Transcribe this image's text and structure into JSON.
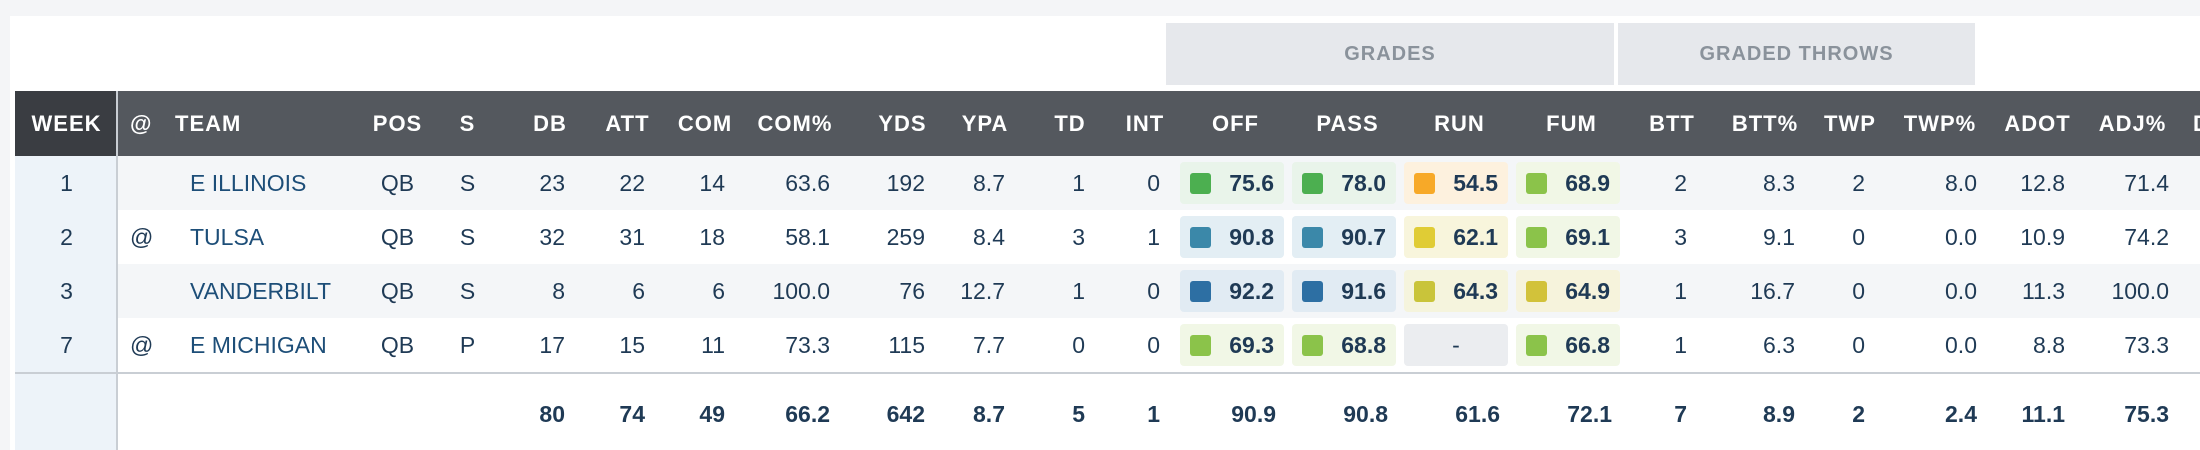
{
  "group_headers": {
    "grades": "GRADES",
    "graded_throws": "GRADED THROWS"
  },
  "columns": {
    "week": "WEEK",
    "at": "@",
    "team": "TEAM",
    "pos": "POS",
    "s": "S",
    "db": "DB",
    "att": "ATT",
    "com": "COM",
    "com_pct": "COM%",
    "yds": "YDS",
    "ypa": "YPA",
    "td": "TD",
    "int": "INT",
    "off": "OFF",
    "pass": "PASS",
    "run": "RUN",
    "fum": "FUM",
    "btt": "BTT",
    "btt_pct": "BTT%",
    "twp": "TWP",
    "twp_pct": "TWP%",
    "adot": "ADOT",
    "adj_pct": "ADJ%",
    "next": "D"
  },
  "rows": [
    {
      "week": "1",
      "at": "",
      "team": "E ILLINOIS",
      "pos": "QB",
      "s": "S",
      "db": "23",
      "att": "22",
      "com": "14",
      "com_pct": "63.6",
      "yds": "192",
      "ypa": "8.7",
      "td": "1",
      "int": "0",
      "off": "75.6",
      "pass": "78.0",
      "run": "54.5",
      "fum": "68.9",
      "off_color": "#4caf50",
      "pass_color": "#4caf50",
      "run_color": "#f7a928",
      "fum_color": "#8bc34a",
      "off_bg": "#e9f4ea",
      "pass_bg": "#e9f4ea",
      "run_bg": "#fdf1de",
      "fum_bg": "#f1f7e6",
      "btt": "2",
      "btt_pct": "8.3",
      "twp": "2",
      "twp_pct": "8.0",
      "adot": "12.8",
      "adj_pct": "71.4"
    },
    {
      "week": "2",
      "at": "@",
      "team": "TULSA",
      "pos": "QB",
      "s": "S",
      "db": "32",
      "att": "31",
      "com": "18",
      "com_pct": "58.1",
      "yds": "259",
      "ypa": "8.4",
      "td": "3",
      "int": "1",
      "off": "90.8",
      "pass": "90.7",
      "run": "62.1",
      "fum": "69.1",
      "off_color": "#3b88a9",
      "pass_color": "#3b88a9",
      "run_color": "#e0cc35",
      "fum_color": "#8bc34a",
      "off_bg": "#e3eef4",
      "pass_bg": "#e3eef4",
      "run_bg": "#f8f5dc",
      "fum_bg": "#f1f7e6",
      "btt": "3",
      "btt_pct": "9.1",
      "twp": "0",
      "twp_pct": "0.0",
      "adot": "10.9",
      "adj_pct": "74.2"
    },
    {
      "week": "3",
      "at": "",
      "team": "VANDERBILT",
      "pos": "QB",
      "s": "S",
      "db": "8",
      "att": "6",
      "com": "6",
      "com_pct": "100.0",
      "yds": "76",
      "ypa": "12.7",
      "td": "1",
      "int": "0",
      "off": "92.2",
      "pass": "91.6",
      "run": "64.3",
      "fum": "64.9",
      "off_color": "#2d6fa3",
      "pass_color": "#2d6fa3",
      "run_color": "#c9c43a",
      "fum_color": "#d2c23a",
      "off_bg": "#e1ebf3",
      "pass_bg": "#e1ebf3",
      "run_bg": "#f5f4dd",
      "fum_bg": "#f6f3dc",
      "btt": "1",
      "btt_pct": "16.7",
      "twp": "0",
      "twp_pct": "0.0",
      "adot": "11.3",
      "adj_pct": "100.0"
    },
    {
      "week": "7",
      "at": "@",
      "team": "E MICHIGAN",
      "pos": "QB",
      "s": "P",
      "db": "17",
      "att": "15",
      "com": "11",
      "com_pct": "73.3",
      "yds": "115",
      "ypa": "7.7",
      "td": "0",
      "int": "0",
      "off": "69.3",
      "pass": "68.8",
      "run": "-",
      "fum": "66.8",
      "off_color": "#8bc34a",
      "pass_color": "#8bc34a",
      "run_color": "",
      "fum_color": "#8bc34a",
      "off_bg": "#f1f7e6",
      "pass_bg": "#f1f7e6",
      "run_bg": "#ebedf0",
      "fum_bg": "#f1f7e6",
      "btt": "1",
      "btt_pct": "6.3",
      "twp": "0",
      "twp_pct": "0.0",
      "adot": "8.8",
      "adj_pct": "73.3"
    }
  ],
  "totals": {
    "db": "80",
    "att": "74",
    "com": "49",
    "com_pct": "66.2",
    "yds": "642",
    "ypa": "8.7",
    "td": "5",
    "int": "1",
    "off": "90.9",
    "pass": "90.8",
    "run": "61.6",
    "fum": "72.1",
    "btt": "7",
    "btt_pct": "8.9",
    "twp": "2",
    "twp_pct": "2.4",
    "adot": "11.1",
    "adj_pct": "75.3"
  }
}
